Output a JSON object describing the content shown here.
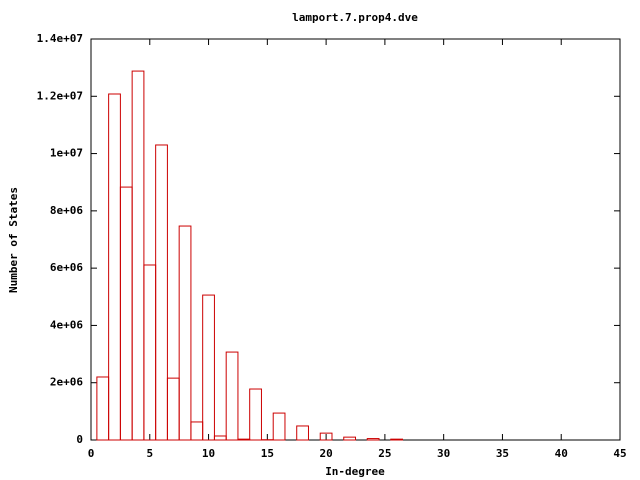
{
  "chart_data": {
    "type": "histogram",
    "title": "lamport.7.prop4.dve",
    "x_label": "In-degree",
    "y_label": "Number of States",
    "x": [
      1,
      2,
      3,
      4,
      5,
      6,
      7,
      8,
      9,
      10,
      11,
      12,
      13,
      14,
      15,
      16,
      17,
      18,
      19,
      20,
      21,
      22,
      23,
      24,
      25,
      26
    ],
    "values": [
      2200000,
      12080000,
      8830000,
      12880000,
      6110000,
      10300000,
      2160000,
      7470000,
      630000,
      5060000,
      140000,
      3070000,
      30000,
      1780000,
      10000,
      940000,
      0,
      490000,
      0,
      240000,
      0,
      100000,
      0,
      50000,
      0,
      30000
    ],
    "color": "#cc0000",
    "xlim": [
      0,
      45
    ],
    "xticks": [
      0,
      5,
      10,
      15,
      20,
      25,
      30,
      35,
      40,
      45
    ],
    "ylim": [
      0,
      14000000
    ],
    "yticks": [
      0,
      {
        "value": 2000000,
        "label": "2e+06"
      },
      {
        "value": 4000000,
        "label": "4e+06"
      },
      {
        "value": 6000000,
        "label": "6e+06"
      },
      {
        "value": 8000000,
        "label": "8e+06"
      },
      {
        "value": 10000000,
        "label": "1e+07"
      },
      {
        "value": 12000000,
        "label": "1.2e+07"
      },
      {
        "value": 14000000,
        "label": "1.4e+07"
      }
    ]
  }
}
